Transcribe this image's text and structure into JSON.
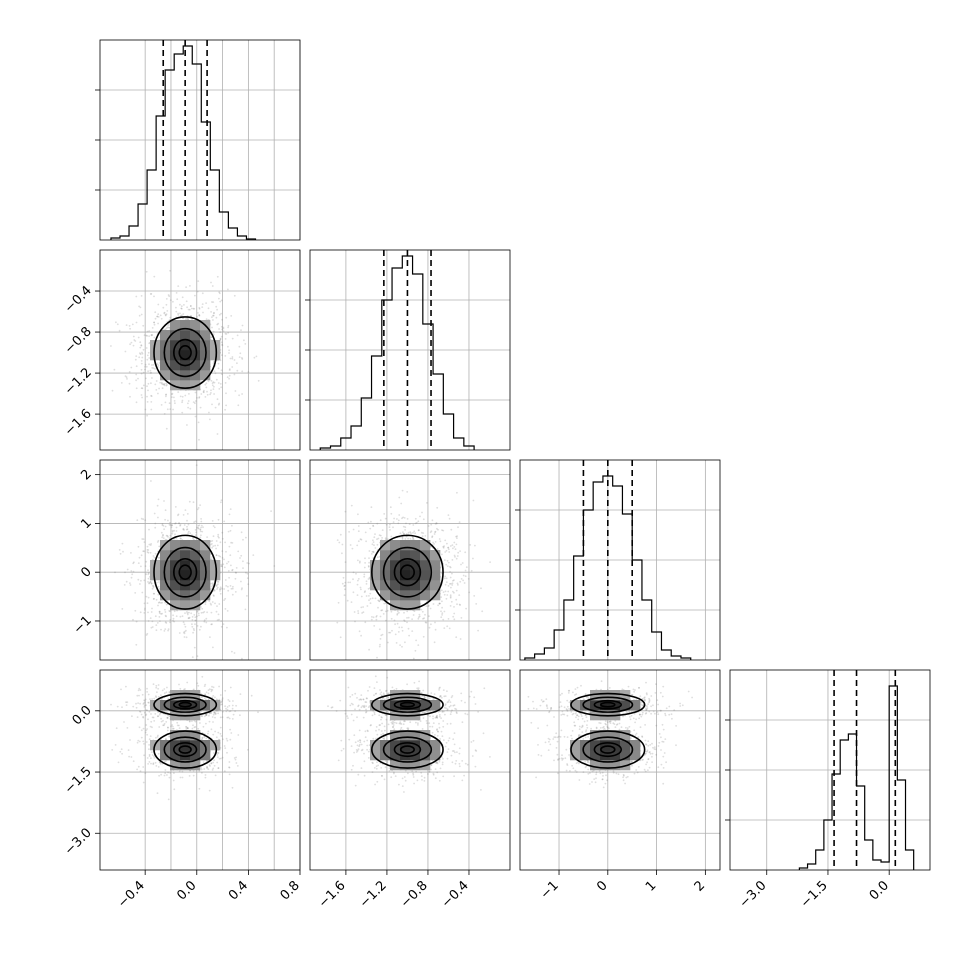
{
  "figure": {
    "params": [
      "p1",
      "p2",
      "p3",
      "p4"
    ],
    "quantiles": [
      0.16,
      0.5,
      0.84
    ],
    "grid": true,
    "show_titles": false
  },
  "chart_data": [
    {
      "type": "histogram",
      "panel": "p1",
      "xlim": [
        -0.75,
        0.8
      ],
      "ylim": [
        0,
        1.0
      ],
      "xticks": [
        -0.4,
        -0.2,
        0.0,
        0.2,
        0.4,
        0.6,
        0.8
      ],
      "quantile_lines": [
        -0.26,
        -0.09,
        0.08
      ],
      "bins": [
        -0.63,
        -0.56,
        -0.49,
        -0.42,
        -0.35,
        -0.28,
        -0.21,
        -0.14,
        -0.07,
        0.0,
        0.07,
        0.14,
        0.21,
        0.28,
        0.35,
        0.42
      ],
      "counts": [
        0.01,
        0.02,
        0.07,
        0.18,
        0.35,
        0.62,
        0.85,
        0.93,
        0.97,
        0.88,
        0.59,
        0.35,
        0.14,
        0.06,
        0.02,
        0.005
      ]
    },
    {
      "type": "histogram",
      "panel": "p2",
      "xlim": [
        -1.95,
        -0.0
      ],
      "ylim": [
        0,
        1.0
      ],
      "xticks": [
        -1.6,
        -1.2,
        -0.8,
        -0.4
      ],
      "xtick_labels": [
        "−1.6",
        "−1.2",
        "−0.8",
        "−0.4"
      ],
      "quantile_lines": [
        -1.23,
        -1.0,
        -0.77
      ],
      "bins": [
        -1.8,
        -1.7,
        -1.6,
        -1.5,
        -1.4,
        -1.3,
        -1.2,
        -1.1,
        -1.0,
        -0.9,
        -0.8,
        -0.7,
        -0.6,
        -0.5,
        -0.4
      ],
      "counts": [
        0.01,
        0.02,
        0.06,
        0.12,
        0.26,
        0.47,
        0.75,
        0.91,
        0.97,
        0.88,
        0.63,
        0.38,
        0.18,
        0.06,
        0.02
      ]
    },
    {
      "type": "histogram",
      "panel": "p3",
      "xlim": [
        -1.8,
        2.3
      ],
      "ylim": [
        0,
        1.0
      ],
      "xticks": [
        -1,
        0,
        1,
        2
      ],
      "xtick_labels": [
        "−1",
        "0",
        "1",
        "2"
      ],
      "quantile_lines": [
        -0.5,
        0.0,
        0.5
      ],
      "bins": [
        -1.6,
        -1.4,
        -1.2,
        -1.0,
        -0.8,
        -0.6,
        -0.4,
        -0.2,
        0.0,
        0.2,
        0.4,
        0.6,
        0.8,
        1.0,
        1.2,
        1.4,
        1.6
      ],
      "counts": [
        0.01,
        0.03,
        0.06,
        0.15,
        0.3,
        0.52,
        0.75,
        0.89,
        0.92,
        0.87,
        0.73,
        0.5,
        0.3,
        0.14,
        0.05,
        0.02,
        0.01
      ]
    },
    {
      "type": "histogram",
      "panel": "p4",
      "xlim": [
        -3.9,
        1.0
      ],
      "ylim": [
        0,
        1.0
      ],
      "xticks": [
        -3.0,
        -1.5,
        0.0
      ],
      "xtick_labels": [
        "−3.0",
        "−1.5",
        "0.0"
      ],
      "quantile_lines": [
        -1.35,
        -0.8,
        0.15
      ],
      "bins": [
        -2.1,
        -1.9,
        -1.7,
        -1.5,
        -1.3,
        -1.1,
        -0.9,
        -0.7,
        -0.5,
        -0.3,
        -0.1,
        0.1,
        0.3,
        0.5
      ],
      "counts": [
        0.01,
        0.03,
        0.1,
        0.25,
        0.48,
        0.65,
        0.68,
        0.42,
        0.15,
        0.05,
        0.04,
        0.92,
        0.45,
        0.1
      ]
    },
    {
      "type": "hist2d",
      "panel": "p1-p2",
      "xlim": [
        -0.75,
        0.8
      ],
      "ylim": [
        -1.95,
        -0.0
      ],
      "yticks": [
        -1.6,
        -1.2,
        -0.8,
        -0.4
      ],
      "ytick_labels": [
        "−1.6",
        "−1.2",
        "−0.8",
        "−0.4"
      ],
      "centers": [
        {
          "x": -0.09,
          "y": -1.0,
          "sx": 0.16,
          "sy": 0.23,
          "w": 1
        }
      ]
    },
    {
      "type": "hist2d",
      "panel": "p1-p3",
      "xlim": [
        -0.75,
        0.8
      ],
      "ylim": [
        -1.8,
        2.3
      ],
      "yticks": [
        -1,
        0,
        1,
        2
      ],
      "ytick_labels": [
        "−1",
        "0",
        "1",
        "2"
      ],
      "centers": [
        {
          "x": -0.09,
          "y": 0.0,
          "sx": 0.16,
          "sy": 0.5,
          "w": 1
        }
      ]
    },
    {
      "type": "hist2d",
      "panel": "p2-p3",
      "xlim": [
        -1.95,
        -0.0
      ],
      "ylim": [
        -1.8,
        2.3
      ],
      "centers": [
        {
          "x": -1.0,
          "y": 0.0,
          "sx": 0.23,
          "sy": 0.5,
          "w": 1
        }
      ]
    },
    {
      "type": "hist2d",
      "panel": "p1-p4",
      "xlim": [
        -0.75,
        0.8
      ],
      "ylim": [
        -3.9,
        1.0
      ],
      "yticks": [
        -3.0,
        -1.5,
        0.0
      ],
      "ytick_labels": [
        "−3.0",
        "−1.5",
        "0.0"
      ],
      "centers": [
        {
          "x": -0.09,
          "y": 0.15,
          "sx": 0.16,
          "sy": 0.18,
          "w": 0.5
        },
        {
          "x": -0.09,
          "y": -0.95,
          "sx": 0.16,
          "sy": 0.3,
          "w": 0.5
        }
      ]
    },
    {
      "type": "hist2d",
      "panel": "p2-p4",
      "xlim": [
        -1.95,
        -0.0
      ],
      "ylim": [
        -3.9,
        1.0
      ],
      "centers": [
        {
          "x": -1.0,
          "y": 0.15,
          "sx": 0.23,
          "sy": 0.18,
          "w": 0.5
        },
        {
          "x": -1.0,
          "y": -0.95,
          "sx": 0.23,
          "sy": 0.3,
          "w": 0.5
        }
      ]
    },
    {
      "type": "hist2d",
      "panel": "p3-p4",
      "xlim": [
        -1.8,
        2.3
      ],
      "ylim": [
        -3.9,
        1.0
      ],
      "centers": [
        {
          "x": 0.0,
          "y": 0.15,
          "sx": 0.5,
          "sy": 0.18,
          "w": 0.5
        },
        {
          "x": 0.0,
          "y": -0.95,
          "sx": 0.5,
          "sy": 0.3,
          "w": 0.5
        }
      ]
    }
  ],
  "bottom_labels": {
    "p1": [
      "−0.4",
      "0.0",
      "0.4",
      "0.8"
    ],
    "p2": [
      "−1.6",
      "−1.2",
      "−0.8",
      "−0.4"
    ],
    "p3": [
      "−1",
      "0",
      "1",
      "2"
    ],
    "p4": [
      "−3.0",
      "−1.5",
      "0.0"
    ]
  },
  "left_labels": {
    "p2": [
      "−1.6",
      "−1.2",
      "−0.8",
      "−0.4"
    ],
    "p3": [
      "−1",
      "0",
      "1",
      "2"
    ],
    "p4": [
      "−3.0",
      "−1.5",
      "0.0"
    ]
  }
}
